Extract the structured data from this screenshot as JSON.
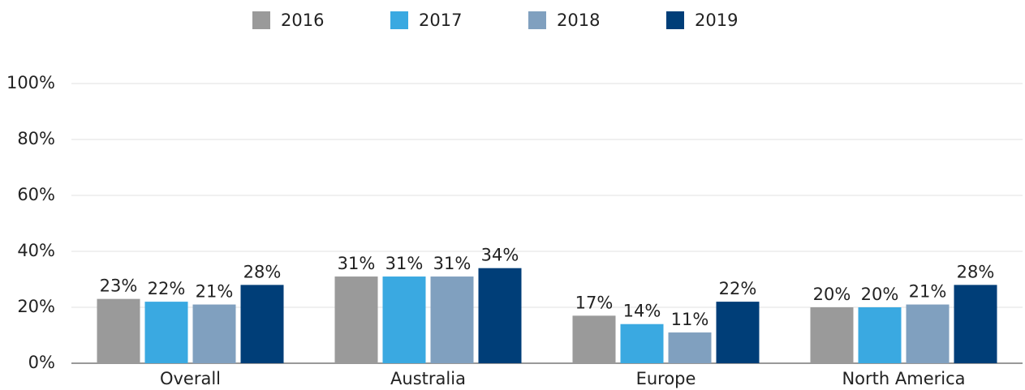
{
  "chart_data": {
    "type": "bar",
    "categories": [
      "Overall",
      "Australia",
      "Europe",
      "North America"
    ],
    "series": [
      {
        "name": "2016",
        "color": "#9a9a9a",
        "values": [
          23,
          31,
          17,
          20
        ],
        "value_labels": [
          "23%",
          "31%",
          "17%",
          "20%"
        ]
      },
      {
        "name": "2017",
        "color": "#3aa9e1",
        "values": [
          22,
          31,
          14,
          20
        ],
        "value_labels": [
          "22%",
          "31%",
          "14%",
          "20%"
        ]
      },
      {
        "name": "2018",
        "color": "#80a0bf",
        "values": [
          21,
          31,
          11,
          21
        ],
        "value_labels": [
          "21%",
          "31%",
          "11%",
          "21%"
        ]
      },
      {
        "name": "2019",
        "color": "#003e78",
        "values": [
          28,
          34,
          22,
          28
        ],
        "value_labels": [
          "28%",
          "34%",
          "22%",
          "28%"
        ]
      }
    ],
    "ylim": [
      0,
      100
    ],
    "yticks": [
      {
        "value": 0,
        "label": "0%"
      },
      {
        "value": 20,
        "label": "20%"
      },
      {
        "value": 40,
        "label": "40%"
      },
      {
        "value": 60,
        "label": "60%"
      },
      {
        "value": 80,
        "label": "80%"
      },
      {
        "value": 100,
        "label": "100%"
      }
    ],
    "grid": true,
    "legend": "top"
  }
}
